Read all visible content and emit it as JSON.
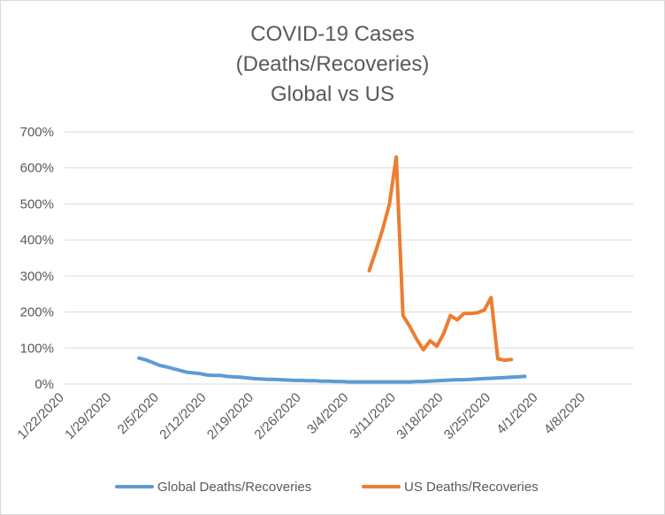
{
  "chart_data": {
    "type": "line",
    "title_lines": [
      "COVID-19 Cases",
      "(Deaths/Recoveries)",
      "Global vs US"
    ],
    "xlabel": "",
    "ylabel": "",
    "x_ticks": [
      "1/22/2020",
      "1/29/2020",
      "2/5/2020",
      "2/12/2020",
      "2/19/2020",
      "2/26/2020",
      "3/4/2020",
      "3/11/2020",
      "3/18/2020",
      "3/25/2020",
      "4/1/2020",
      "4/8/2020"
    ],
    "y_ticks": [
      "0%",
      "100%",
      "200%",
      "300%",
      "400%",
      "500%",
      "600%",
      "700%"
    ],
    "x_range": [
      "1/22/2020",
      "4/15/2020"
    ],
    "y_range": [
      0,
      700
    ],
    "y_unit": "%",
    "grid": "horizontal",
    "legend_position": "bottom",
    "series": [
      {
        "name": "Global Deaths/Recoveries",
        "color": "#5b9bd5",
        "points": [
          [
            "2/2/2020",
            72
          ],
          [
            "2/3/2020",
            67
          ],
          [
            "2/4/2020",
            60
          ],
          [
            "2/5/2020",
            52
          ],
          [
            "2/6/2020",
            48
          ],
          [
            "2/7/2020",
            43
          ],
          [
            "2/8/2020",
            38
          ],
          [
            "2/9/2020",
            33
          ],
          [
            "2/10/2020",
            31
          ],
          [
            "2/11/2020",
            29
          ],
          [
            "2/12/2020",
            25
          ],
          [
            "2/13/2020",
            24
          ],
          [
            "2/14/2020",
            24
          ],
          [
            "2/15/2020",
            21
          ],
          [
            "2/16/2020",
            20
          ],
          [
            "2/17/2020",
            19
          ],
          [
            "2/18/2020",
            17
          ],
          [
            "2/19/2020",
            15
          ],
          [
            "2/20/2020",
            14
          ],
          [
            "2/21/2020",
            13
          ],
          [
            "2/22/2020",
            13
          ],
          [
            "2/23/2020",
            12
          ],
          [
            "2/24/2020",
            11
          ],
          [
            "2/25/2020",
            10
          ],
          [
            "2/26/2020",
            10
          ],
          [
            "2/27/2020",
            9
          ],
          [
            "2/28/2020",
            9
          ],
          [
            "2/29/2020",
            8
          ],
          [
            "3/1/2020",
            8
          ],
          [
            "3/2/2020",
            7
          ],
          [
            "3/3/2020",
            7
          ],
          [
            "3/4/2020",
            6
          ],
          [
            "3/5/2020",
            6
          ],
          [
            "3/6/2020",
            6
          ],
          [
            "3/7/2020",
            6
          ],
          [
            "3/8/2020",
            6
          ],
          [
            "3/9/2020",
            6
          ],
          [
            "3/10/2020",
            6
          ],
          [
            "3/11/2020",
            6
          ],
          [
            "3/12/2020",
            6
          ],
          [
            "3/13/2020",
            6
          ],
          [
            "3/14/2020",
            7
          ],
          [
            "3/15/2020",
            7
          ],
          [
            "3/16/2020",
            8
          ],
          [
            "3/17/2020",
            9
          ],
          [
            "3/18/2020",
            10
          ],
          [
            "3/19/2020",
            11
          ],
          [
            "3/20/2020",
            12
          ],
          [
            "3/21/2020",
            12
          ],
          [
            "3/22/2020",
            13
          ],
          [
            "3/23/2020",
            14
          ],
          [
            "3/24/2020",
            15
          ],
          [
            "3/25/2020",
            16
          ],
          [
            "3/26/2020",
            17
          ],
          [
            "3/27/2020",
            18
          ],
          [
            "3/28/2020",
            19
          ],
          [
            "3/29/2020",
            20
          ],
          [
            "3/30/2020",
            21
          ]
        ]
      },
      {
        "name": "US Deaths/Recoveries",
        "color": "#ed7d31",
        "points": [
          [
            "3/7/2020",
            315
          ],
          [
            "3/8/2020",
            370
          ],
          [
            "3/9/2020",
            430
          ],
          [
            "3/10/2020",
            500
          ],
          [
            "3/11/2020",
            630
          ],
          [
            "3/12/2020",
            190
          ],
          [
            "3/13/2020",
            160
          ],
          [
            "3/14/2020",
            125
          ],
          [
            "3/15/2020",
            95
          ],
          [
            "3/16/2020",
            120
          ],
          [
            "3/17/2020",
            105
          ],
          [
            "3/18/2020",
            140
          ],
          [
            "3/19/2020",
            190
          ],
          [
            "3/20/2020",
            178
          ],
          [
            "3/21/2020",
            196
          ],
          [
            "3/22/2020",
            196
          ],
          [
            "3/23/2020",
            198
          ],
          [
            "3/24/2020",
            205
          ],
          [
            "3/25/2020",
            240
          ],
          [
            "3/26/2020",
            70
          ],
          [
            "3/27/2020",
            66
          ],
          [
            "3/28/2020",
            68
          ]
        ]
      }
    ]
  }
}
